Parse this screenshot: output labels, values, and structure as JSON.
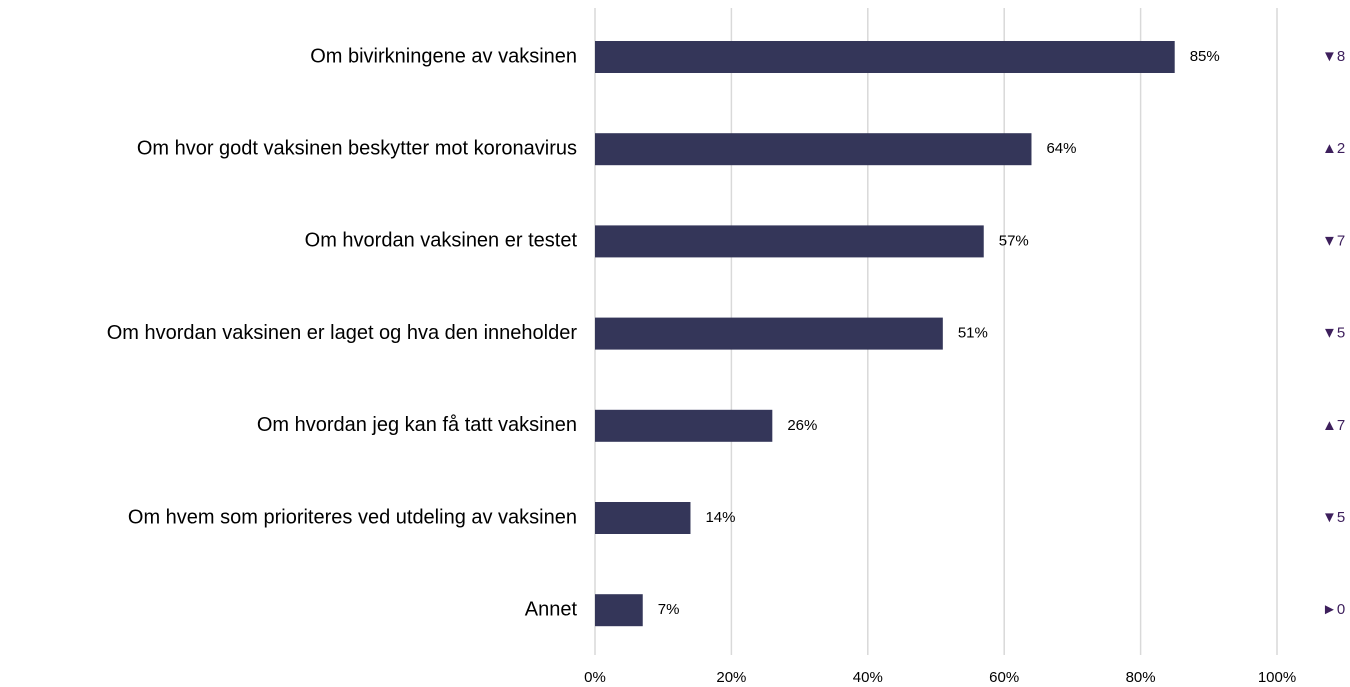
{
  "chart_data": {
    "type": "bar",
    "orientation": "horizontal",
    "categories": [
      "Om bivirkningene av vaksinen",
      "Om hvor godt vaksinen beskytter mot koronavirus",
      "Om hvordan vaksinen er testet",
      "Om hvordan vaksinen er laget og hva den inneholder",
      "Om hvordan jeg kan få tatt vaksinen",
      "Om hvem som prioriteres ved utdeling av vaksinen",
      "Annet"
    ],
    "values": [
      85,
      64,
      57,
      51,
      26,
      14,
      7
    ],
    "value_labels": [
      "85%",
      "64%",
      "57%",
      "51%",
      "26%",
      "14%",
      "7%"
    ],
    "annotations": [
      "▼8",
      "▲2",
      "▼7",
      "▼5",
      "▲7",
      "▼5",
      "►0"
    ],
    "color": "#343659",
    "annotation_color": "#3d1f5c",
    "xlim": [
      0,
      100
    ],
    "xticks": [
      {
        "value": 0,
        "label": "0%"
      },
      {
        "value": 20,
        "label": "20%"
      },
      {
        "value": 40,
        "label": "40%"
      },
      {
        "value": 60,
        "label": "60%"
      },
      {
        "value": 80,
        "label": "80%"
      },
      {
        "value": 100,
        "label": "100%"
      }
    ],
    "grid": true
  }
}
